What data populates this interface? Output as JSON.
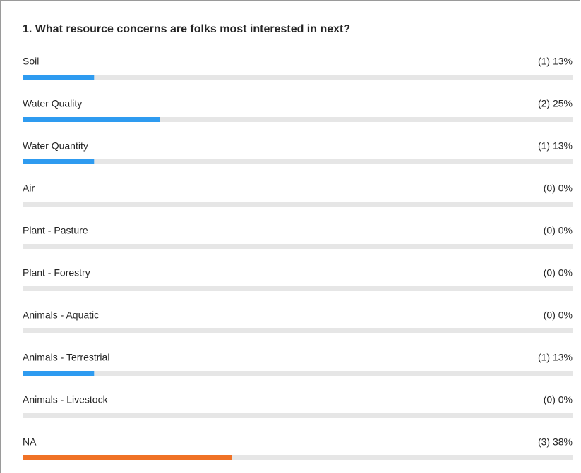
{
  "chart_data": {
    "type": "bar",
    "orientation": "horizontal",
    "title": "1. What resource concerns are folks most interested in next?",
    "categories": [
      "Soil",
      "Water Quality",
      "Water Quantity",
      "Air",
      "Plant - Pasture",
      "Plant - Forestry",
      "Animals - Aquatic",
      "Animals - Terrestrial",
      "Animals - Livestock",
      "NA"
    ],
    "values": [
      13,
      25,
      13,
      0,
      0,
      0,
      0,
      13,
      0,
      38
    ],
    "value_labels": [
      "(1) 13%",
      "(2) 25%",
      "(1) 13%",
      "(0) 0%",
      "(0) 0%",
      "(0) 0%",
      "(0) 0%",
      "(1) 13%",
      "(0) 0%",
      "(3) 38%"
    ],
    "colors": [
      "#2e9bf0",
      "#2e9bf0",
      "#2e9bf0",
      "#2e9bf0",
      "#2e9bf0",
      "#2e9bf0",
      "#2e9bf0",
      "#2e9bf0",
      "#2e9bf0",
      "#f07226"
    ],
    "xlim": [
      0,
      100
    ]
  }
}
